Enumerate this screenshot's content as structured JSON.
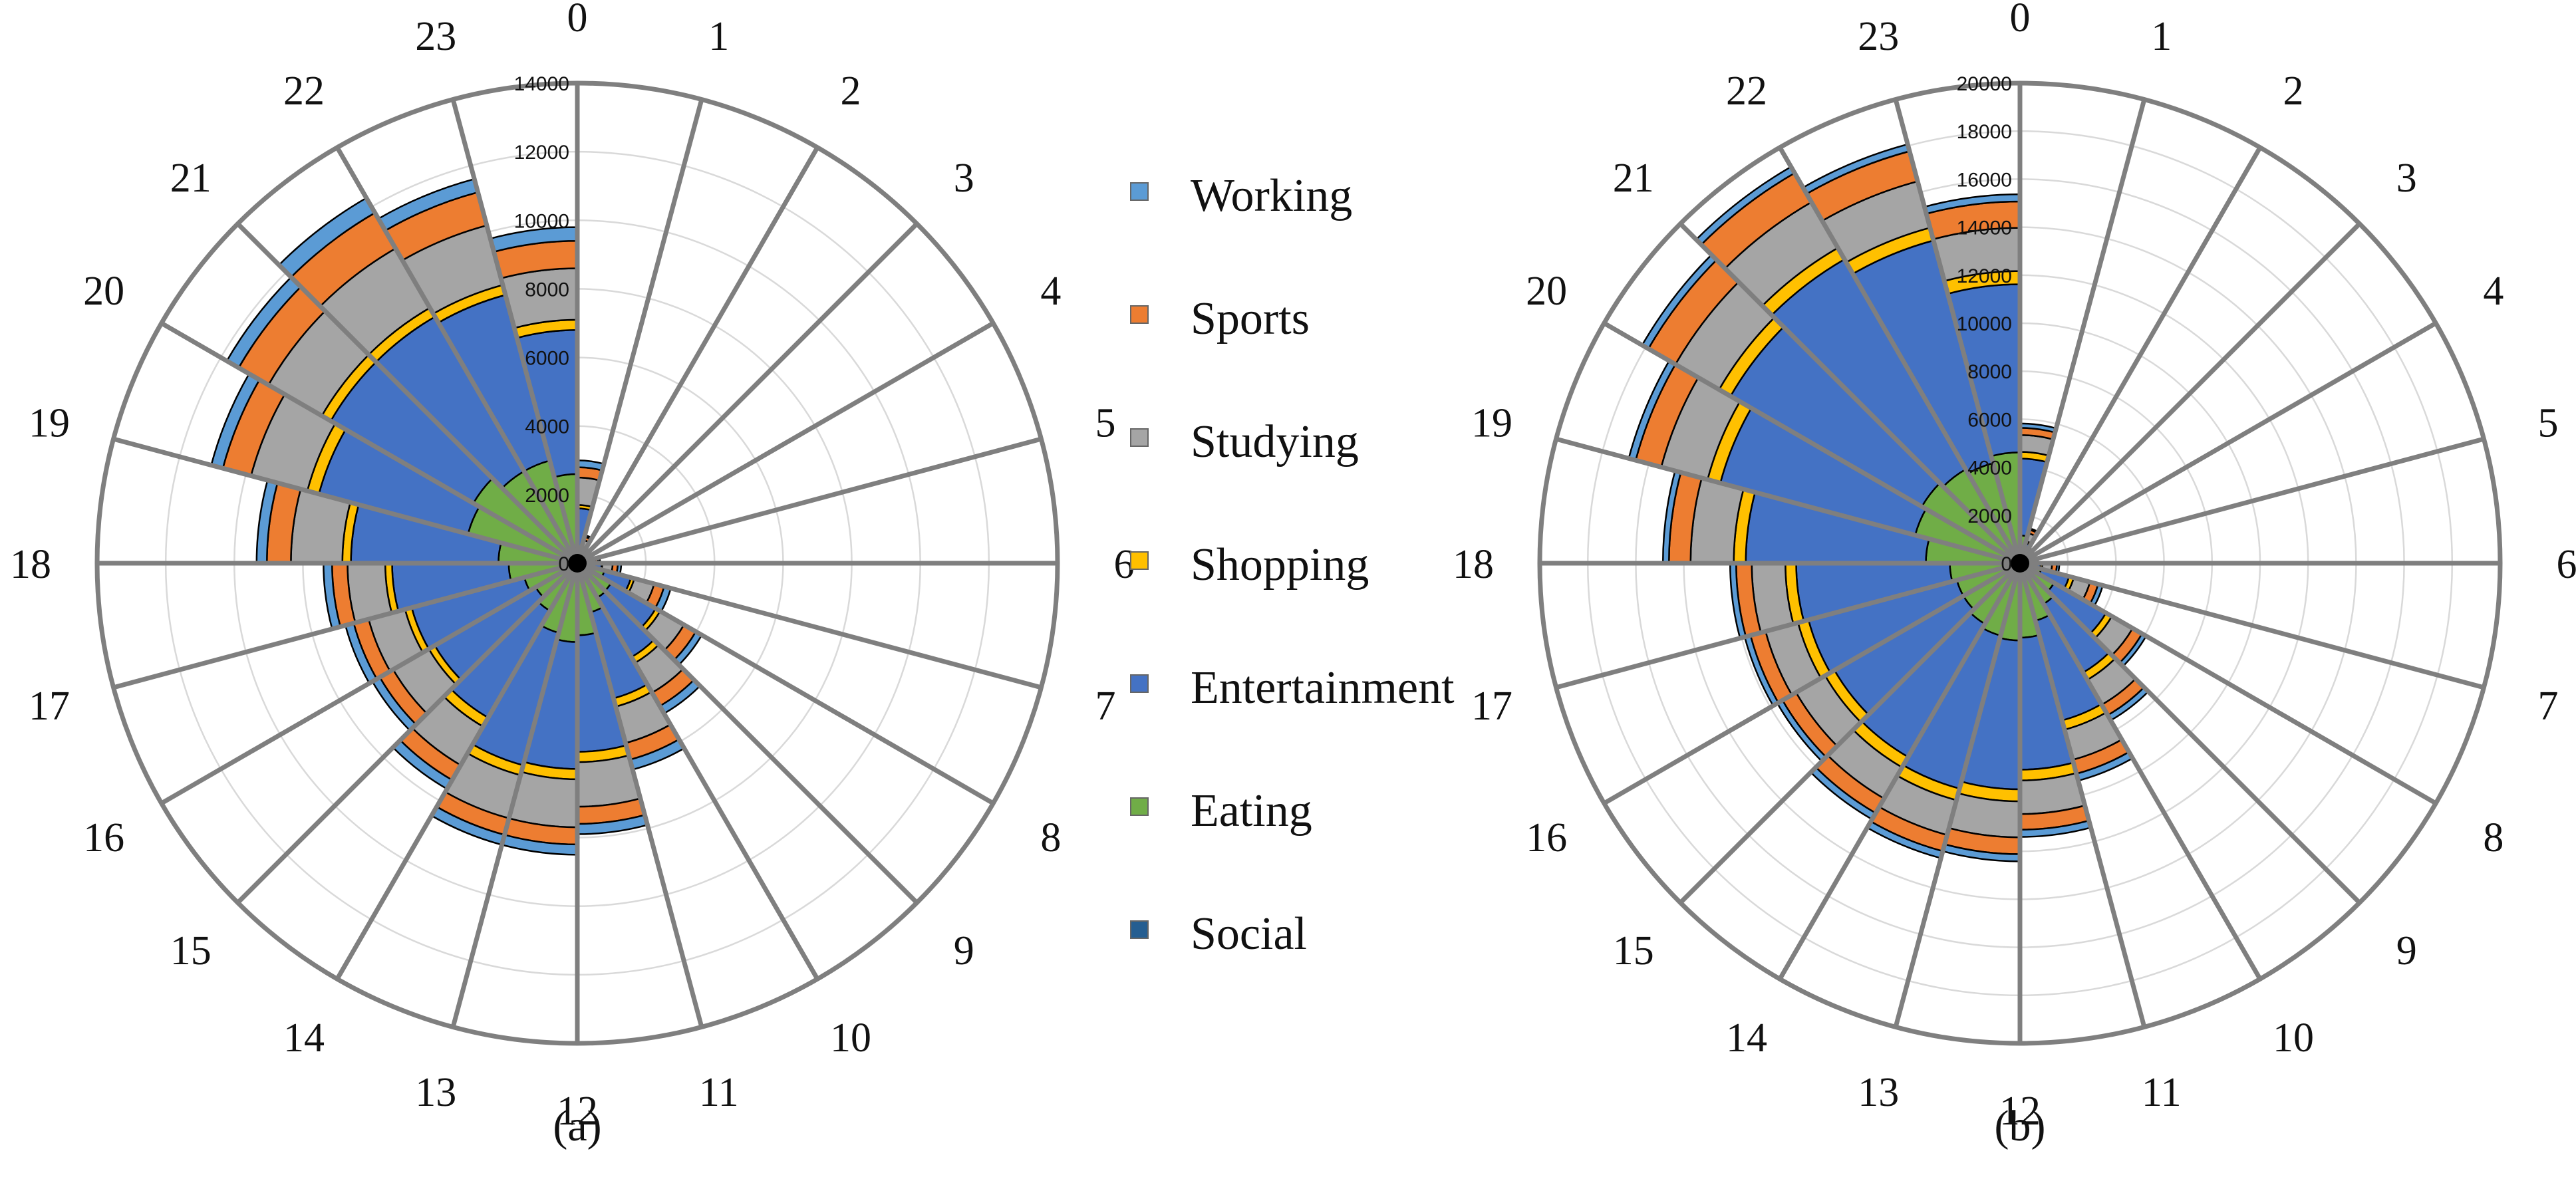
{
  "figure_title": "",
  "legend": [
    {
      "label": "Working",
      "color": "#5B9BD5"
    },
    {
      "label": "Sports",
      "color": "#ED7D31"
    },
    {
      "label": "Studying",
      "color": "#A5A5A5"
    },
    {
      "label": "Shopping",
      "color": "#FFC000"
    },
    {
      "label": "Entertainment",
      "color": "#4472C4"
    },
    {
      "label": "Eating",
      "color": "#70AD47"
    },
    {
      "label": "Social",
      "color": "#255E91"
    }
  ],
  "chart_data": [
    {
      "type": "stacked-polar-bar",
      "panel_label": "(a)",
      "categories": [
        "0",
        "1",
        "2",
        "3",
        "4",
        "5",
        "6",
        "7",
        "8",
        "9",
        "10",
        "11",
        "12",
        "13",
        "14",
        "15",
        "16",
        "17",
        "18",
        "19",
        "20",
        "21",
        "22",
        "23"
      ],
      "rmax": 14000,
      "r_ticks": [
        0,
        2000,
        4000,
        6000,
        8000,
        10000,
        12000,
        14000
      ],
      "r_tick_labels": [
        "0",
        "2000",
        "4000",
        "6000",
        "8000",
        "10000",
        "12000",
        "14000"
      ],
      "series": [
        {
          "name": "Social",
          "values": [
            50,
            20,
            10,
            5,
            5,
            5,
            10,
            20,
            40,
            60,
            80,
            100,
            100,
            100,
            100,
            100,
            100,
            100,
            100,
            100,
            100,
            100,
            100,
            100
          ]
        },
        {
          "name": "Eating",
          "values": [
            400,
            150,
            80,
            60,
            80,
            150,
            400,
            800,
            1100,
            1100,
            1400,
            2000,
            2200,
            2000,
            1500,
            1300,
            1500,
            1900,
            2200,
            3200,
            3400,
            3000,
            3000,
            2500
          ]
        },
        {
          "name": "Entertainment",
          "values": [
            1150,
            300,
            160,
            90,
            110,
            200,
            300,
            800,
            1500,
            2000,
            2600,
            3400,
            3700,
            4000,
            3600,
            3400,
            3400,
            3400,
            4300,
            4500,
            4800,
            5200,
            5000,
            4200
          ]
        },
        {
          "name": "Shopping",
          "values": [
            100,
            30,
            20,
            10,
            10,
            20,
            20,
            100,
            150,
            200,
            250,
            300,
            300,
            300,
            300,
            200,
            200,
            200,
            250,
            350,
            300,
            300,
            300,
            300
          ]
        },
        {
          "name": "Studying",
          "values": [
            800,
            200,
            100,
            60,
            70,
            150,
            300,
            600,
            800,
            1000,
            1100,
            1300,
            1400,
            1300,
            1300,
            1200,
            1100,
            1100,
            1500,
            1700,
            1800,
            2000,
            1800,
            1500
          ]
        },
        {
          "name": "Sports",
          "values": [
            300,
            100,
            80,
            30,
            30,
            80,
            150,
            300,
            400,
            450,
            500,
            500,
            500,
            500,
            500,
            450,
            450,
            450,
            700,
            850,
            1000,
            1200,
            1000,
            800
          ]
        },
        {
          "name": "Working",
          "values": [
            200,
            50,
            50,
            30,
            30,
            60,
            100,
            200,
            200,
            250,
            300,
            300,
            300,
            300,
            300,
            250,
            250,
            250,
            300,
            350,
            400,
            500,
            400,
            400
          ]
        }
      ],
      "hour_labels": [
        "0",
        "1",
        "2",
        "3",
        "4",
        "5",
        "6",
        "7",
        "8",
        "9",
        "10",
        "11",
        "12",
        "13",
        "14",
        "15",
        "16",
        "17",
        "18",
        "19",
        "20",
        "21",
        "22",
        "23"
      ]
    },
    {
      "type": "stacked-polar-bar",
      "panel_label": "(b)",
      "categories": [
        "0",
        "1",
        "2",
        "3",
        "4",
        "5",
        "6",
        "7",
        "8",
        "9",
        "10",
        "11",
        "12",
        "13",
        "14",
        "15",
        "16",
        "17",
        "18",
        "19",
        "20",
        "21",
        "22",
        "23"
      ],
      "rmax": 20000,
      "r_ticks": [
        0,
        2000,
        4000,
        6000,
        8000,
        10000,
        12000,
        14000,
        16000,
        18000,
        20000
      ],
      "r_tick_labels": [
        "0",
        "2000",
        "4000",
        "6000",
        "8000",
        "10000",
        "12000",
        "14000",
        "16000",
        "18000",
        "20000"
      ],
      "series": [
        {
          "name": "Social",
          "values": [
            60,
            20,
            10,
            5,
            5,
            5,
            10,
            20,
            40,
            60,
            80,
            100,
            120,
            120,
            120,
            120,
            120,
            120,
            120,
            120,
            120,
            120,
            120,
            120
          ]
        },
        {
          "name": "Eating",
          "values": [
            1100,
            350,
            150,
            80,
            80,
            150,
            350,
            900,
            1600,
            1900,
            2400,
            3000,
            3100,
            3000,
            2800,
            2600,
            2600,
            2800,
            3800,
            4400,
            4600,
            4400,
            4200,
            4500
          ]
        },
        {
          "name": "Entertainment",
          "values": [
            3200,
            500,
            250,
            120,
            120,
            250,
            500,
            1200,
            2500,
            3300,
            4300,
            5500,
            6200,
            6600,
            6400,
            6200,
            6400,
            6400,
            7500,
            8400,
            9200,
            10100,
            9600,
            7000
          ]
        },
        {
          "name": "Shopping",
          "values": [
            280,
            80,
            40,
            20,
            20,
            40,
            80,
            200,
            280,
            350,
            400,
            450,
            500,
            500,
            500,
            450,
            450,
            450,
            500,
            550,
            550,
            550,
            550,
            550
          ]
        },
        {
          "name": "Studying",
          "values": [
            700,
            350,
            150,
            80,
            80,
            150,
            400,
            700,
            1000,
            1200,
            1300,
            1400,
            1500,
            1500,
            1500,
            1400,
            1400,
            1400,
            1800,
            2000,
            2100,
            2200,
            2000,
            1800
          ]
        },
        {
          "name": "Sports",
          "values": [
            300,
            150,
            100,
            50,
            50,
            100,
            200,
            350,
            450,
            500,
            600,
            650,
            700,
            700,
            700,
            650,
            650,
            650,
            900,
            1100,
            1300,
            1400,
            1300,
            1100
          ]
        },
        {
          "name": "Working",
          "values": [
            180,
            60,
            50,
            20,
            20,
            50,
            100,
            200,
            200,
            250,
            300,
            300,
            300,
            300,
            300,
            250,
            250,
            250,
            250,
            300,
            300,
            300,
            300,
            300
          ]
        }
      ],
      "hour_labels": [
        "0",
        "1",
        "2",
        "3",
        "4",
        "5",
        "6",
        "7",
        "8",
        "9",
        "10",
        "11",
        "12",
        "13",
        "14",
        "15",
        "16",
        "17",
        "18",
        "19",
        "20",
        "21",
        "22",
        "23"
      ]
    }
  ]
}
